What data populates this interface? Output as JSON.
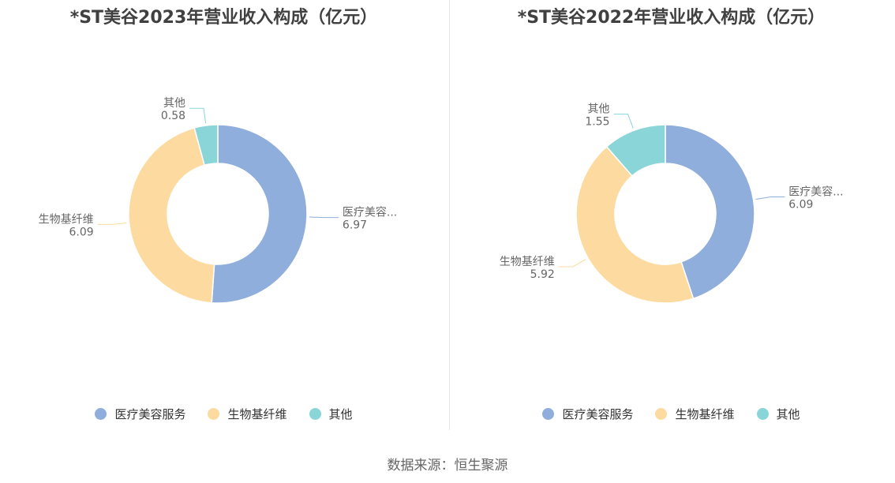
{
  "colors": [
    "#8faedc",
    "#fddba0",
    "#8ad5d8"
  ],
  "chart_data": [
    {
      "type": "pie",
      "title": "*ST美谷2023年营业收入构成（亿元）",
      "donut": true,
      "legend_position": "bottom",
      "slices": [
        {
          "name": "医疗美容服务",
          "short_label": "医疗美容...",
          "value": 6.97,
          "value_label": "6.97"
        },
        {
          "name": "生物基纤维",
          "short_label": "生物基纤维",
          "value": 6.09,
          "value_label": "6.09"
        },
        {
          "name": "其他",
          "short_label": "其他",
          "value": 0.58,
          "value_label": "0.58"
        }
      ]
    },
    {
      "type": "pie",
      "title": "*ST美谷2022年营业收入构成（亿元）",
      "donut": true,
      "legend_position": "bottom",
      "slices": [
        {
          "name": "医疗美容服务",
          "short_label": "医疗美容...",
          "value": 6.09,
          "value_label": "6.09"
        },
        {
          "name": "生物基纤维",
          "short_label": "生物基纤维",
          "value": 5.92,
          "value_label": "5.92"
        },
        {
          "name": "其他",
          "short_label": "其他",
          "value": 1.55,
          "value_label": "1.55"
        }
      ]
    }
  ],
  "source_text": "数据来源：恒生聚源"
}
